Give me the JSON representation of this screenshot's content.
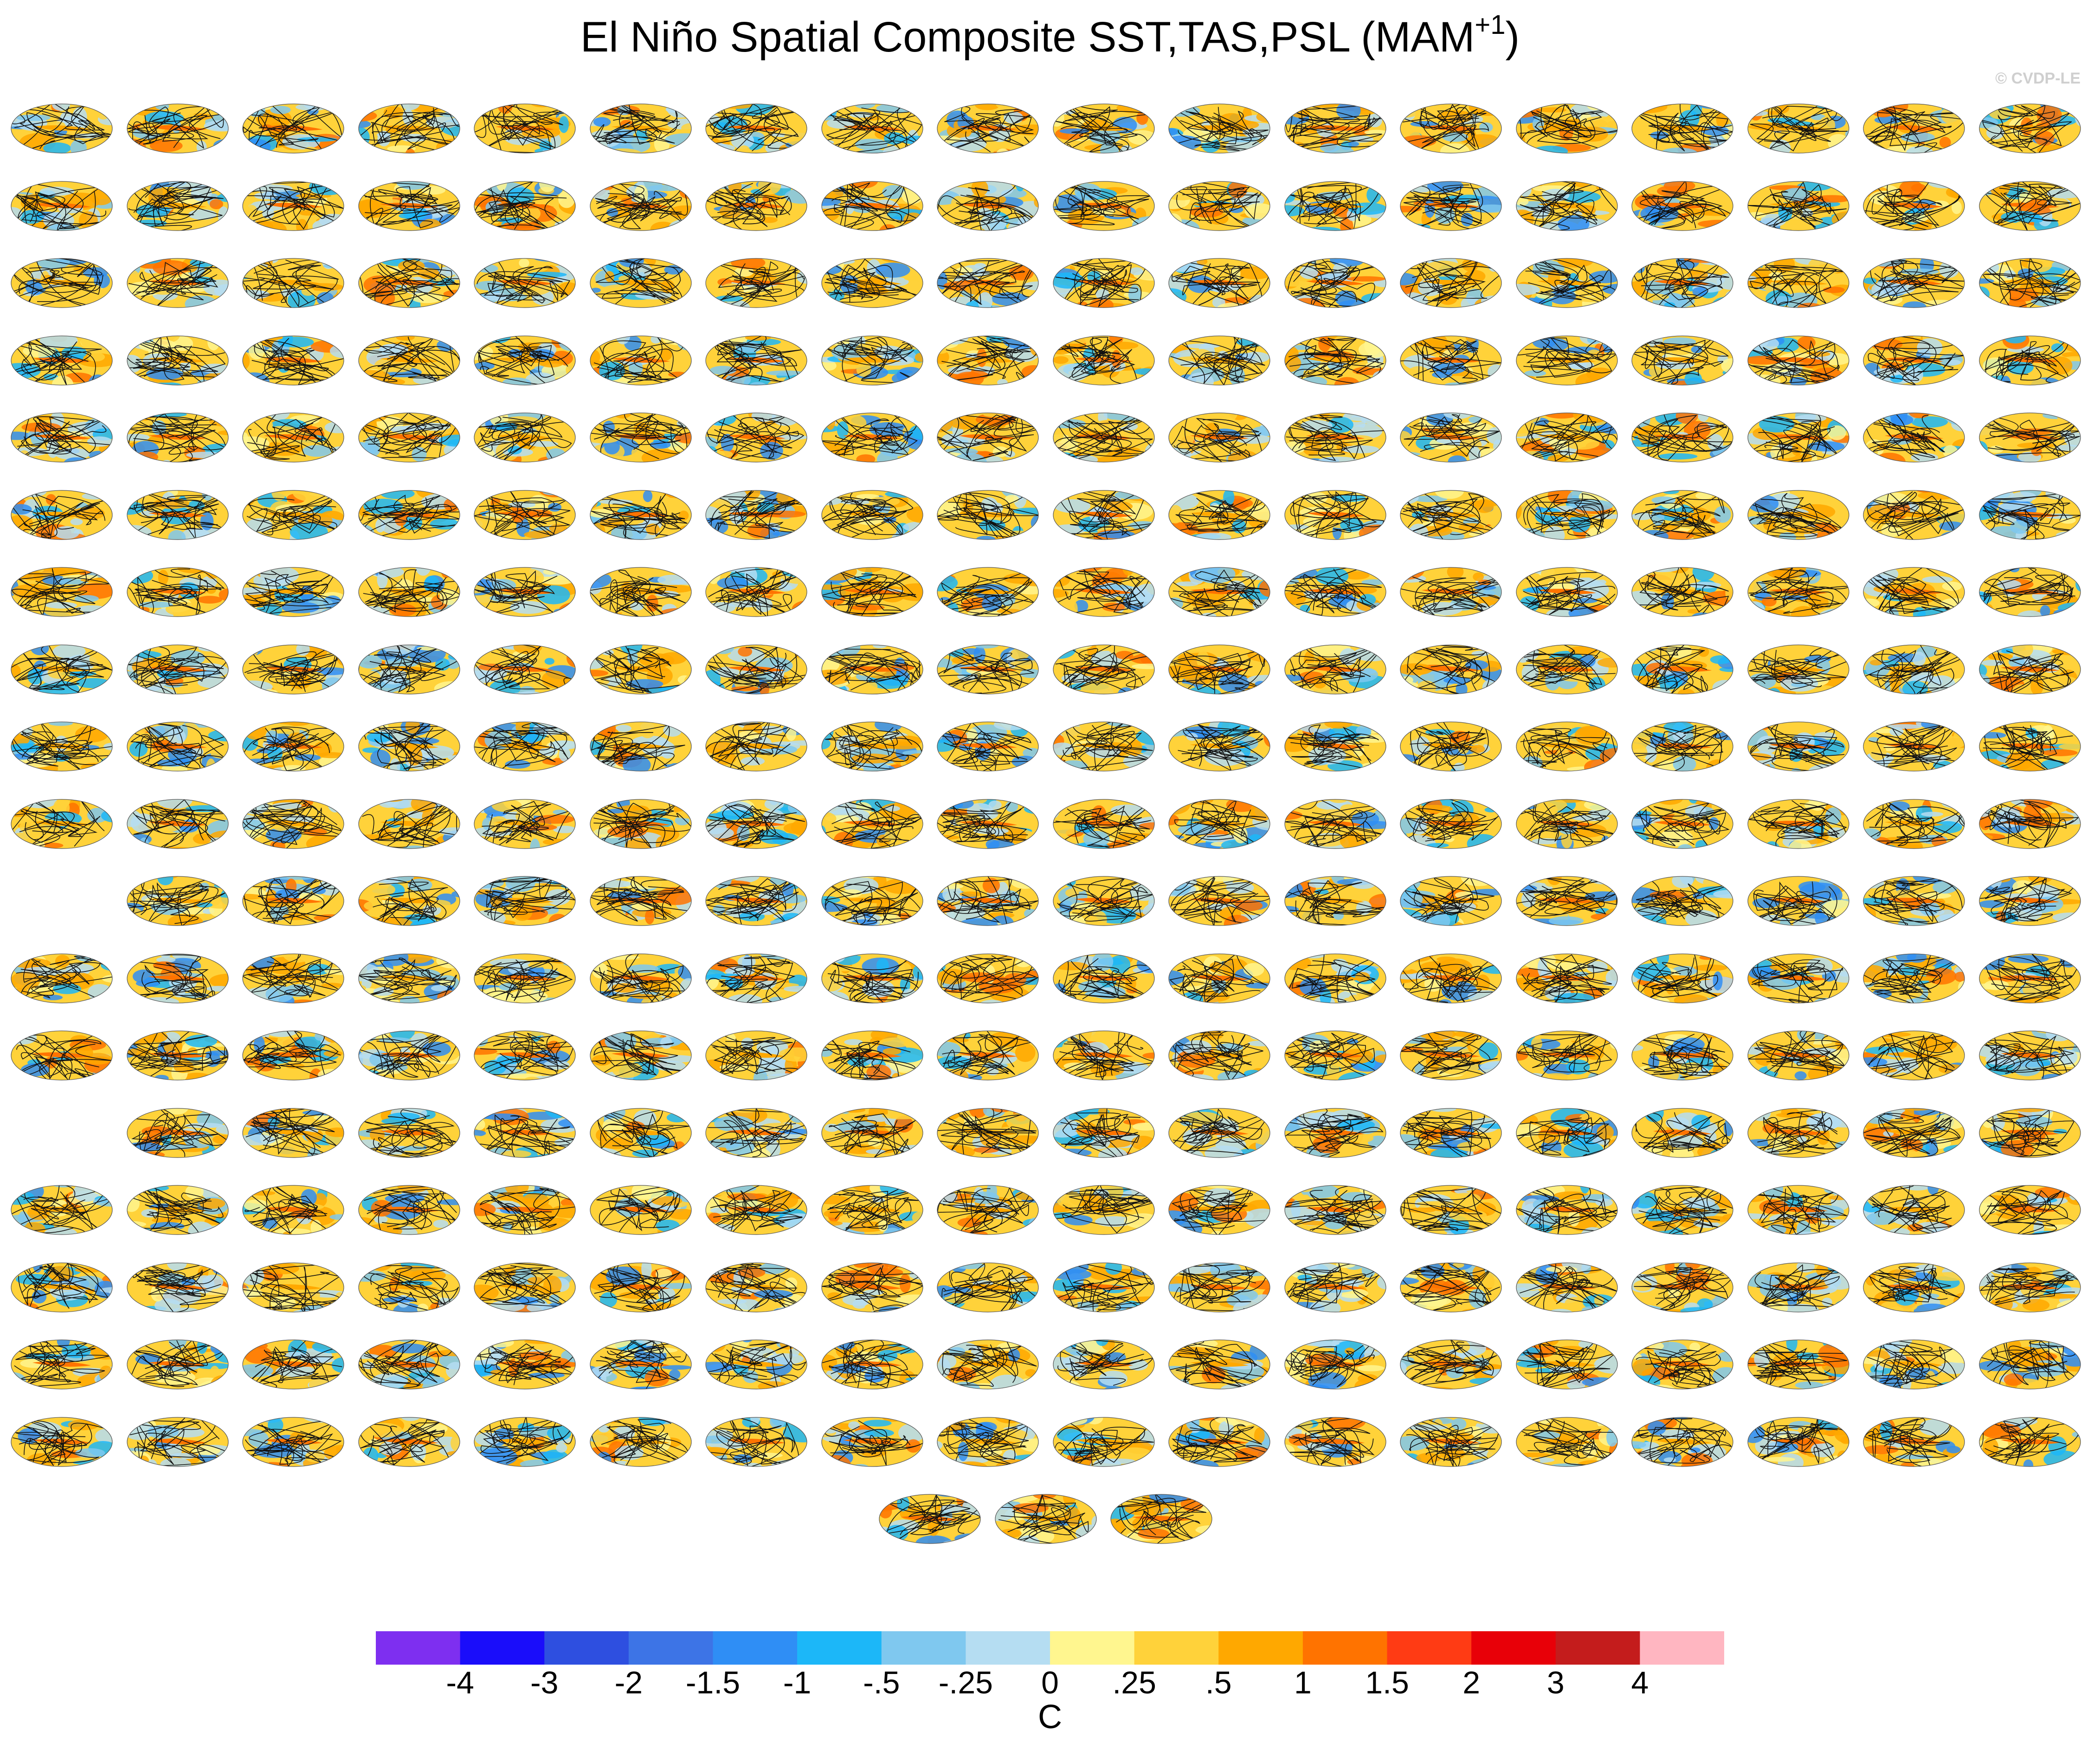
{
  "title": {
    "main": "El Niño Spatial Composite SST,TAS,PSL (MAM",
    "sup": "+1",
    "close": ")"
  },
  "copyright": "© CVDP-LE",
  "chart_data": {
    "type": "heatmap",
    "title": "El Niño Spatial Composite SST,TAS,PSL (MAM+1)",
    "description_panels": "grid of global map composites, 18 columns",
    "row_panel_counts": [
      18,
      18,
      18,
      18,
      18,
      18,
      18,
      18,
      18,
      18,
      17,
      18,
      18,
      17,
      18,
      18,
      18,
      18,
      3
    ],
    "row_skip_first": [
      0,
      0,
      0,
      0,
      0,
      0,
      0,
      0,
      0,
      0,
      1,
      0,
      0,
      1,
      0,
      0,
      0,
      0,
      0
    ],
    "colorbar": {
      "unit": "C",
      "tick_labels": [
        "-4",
        "-3",
        "-2",
        "-1.5",
        "-1",
        "-.5",
        "-.25",
        "0",
        ".25",
        ".5",
        "1",
        "1.5",
        "2",
        "3",
        "4"
      ],
      "colors": [
        "#7e2ff0",
        "#1a0dfa",
        "#2e4fe0",
        "#3d74e6",
        "#2f8ef5",
        "#1cb7f8",
        "#7fc8ef",
        "#b5ddf2",
        "#fff68f",
        "#ffd23a",
        "#ffa800",
        "#ff7300",
        "#ff3b14",
        "#e80008",
        "#c41c1c",
        "#ffb6c1"
      ]
    }
  }
}
